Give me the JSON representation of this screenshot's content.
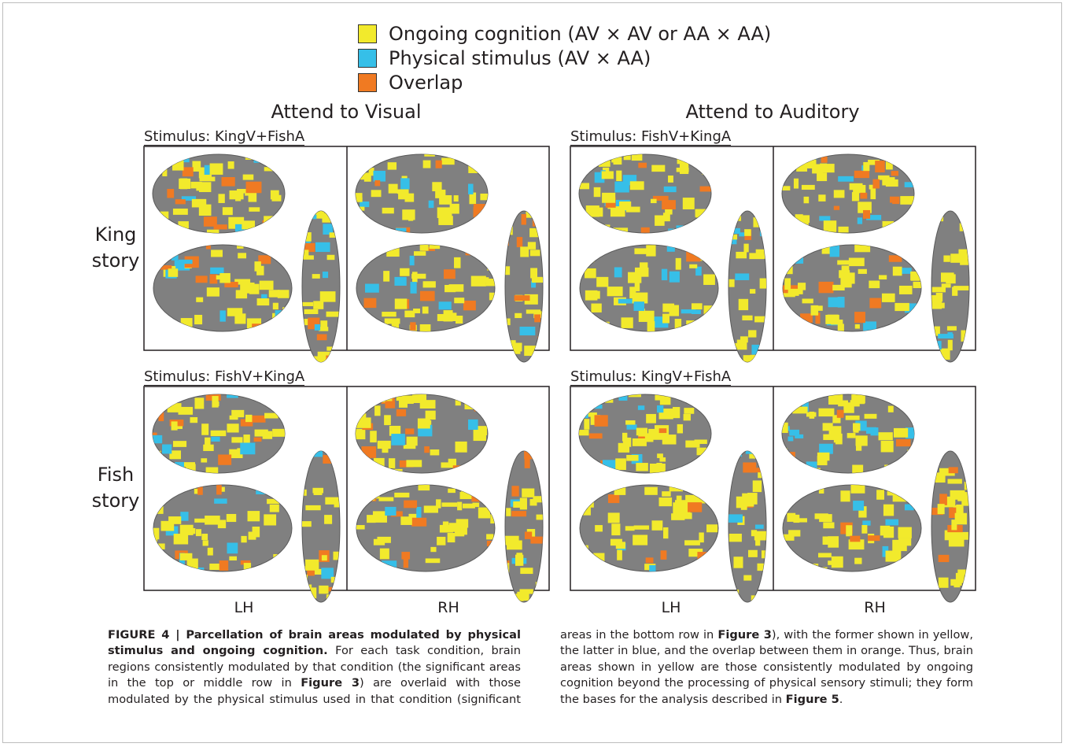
{
  "legend": [
    {
      "label": "Ongoing cognition (AV × AV or AA × AA)",
      "color": "#f2ea2c"
    },
    {
      "label": "Physical stimulus (AV × AA)",
      "color": "#36bfe8"
    },
    {
      "label": "Overlap",
      "color": "#f07a22"
    }
  ],
  "columns": [
    "Attend to Visual",
    "Attend to Auditory"
  ],
  "rows": [
    "King story",
    "Fish story"
  ],
  "panels": [
    {
      "stimulus": "Stimulus: KingV+FishA"
    },
    {
      "stimulus": "Stimulus: FishV+KingA"
    },
    {
      "stimulus": "Stimulus: FishV+KingA"
    },
    {
      "stimulus": "Stimulus: KingV+FishA"
    }
  ],
  "hemispheres": [
    "LH",
    "RH",
    "LH",
    "RH"
  ],
  "caption": [
    {
      "text": "FIGURE 4 | Parcellation of brain areas modulated by physical stimulus and ongoing cognition.",
      "bold": true
    },
    {
      "text": " For each task condition, brain regions consistently modulated by that condition (the significant areas in the top or middle row in ",
      "bold": false
    },
    {
      "text": "Figure 3",
      "bold": true
    },
    {
      "text": ") are overlaid with those modulated by the physical stimulus used in that condition (significant areas in the bottom row in ",
      "bold": false
    },
    {
      "text": "Figure 3",
      "bold": true
    },
    {
      "text": "), with the former shown in yellow, the latter in blue, and the overlap between them in orange. Thus, brain areas shown in yellow are those consistently modulated by ongoing cognition beyond the processing of physical sensory stimuli; they form the bases for the analysis described in ",
      "bold": false
    },
    {
      "text": "Figure 5",
      "bold": true
    },
    {
      "text": ".",
      "bold": false
    }
  ]
}
